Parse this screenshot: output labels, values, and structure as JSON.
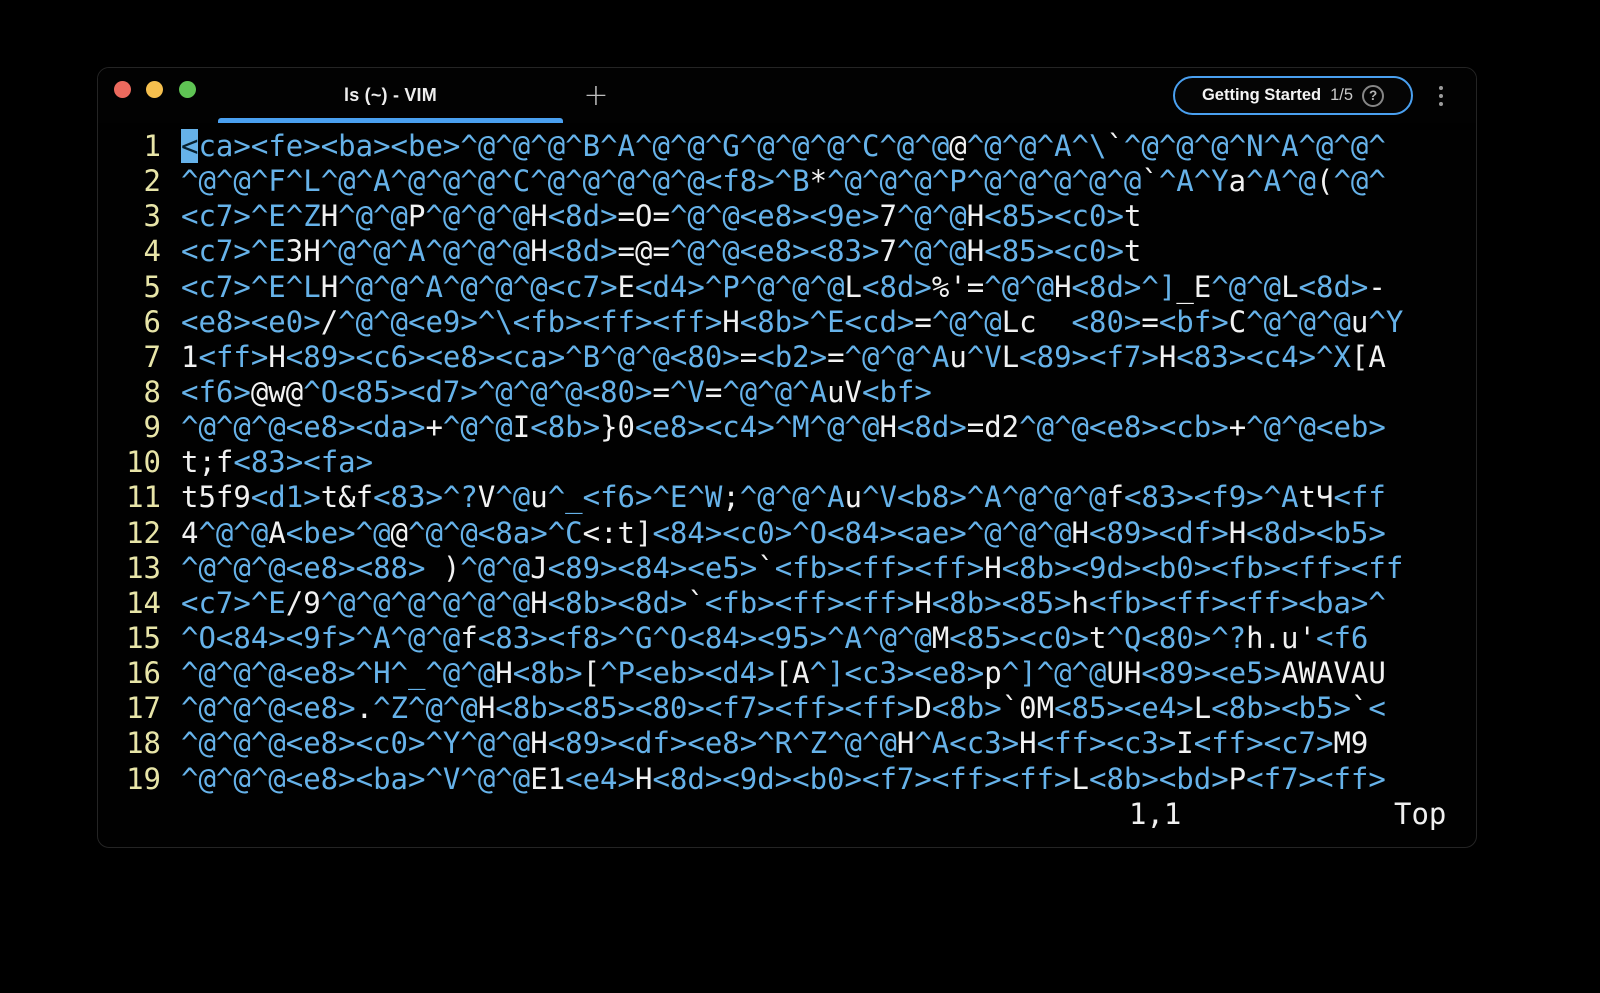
{
  "titlebar": {
    "tab_title": "ls (~) - VIM",
    "new_tab_label": "+",
    "getting_started": {
      "label": "Getting Started",
      "progress": "1/5",
      "help_icon": "?"
    }
  },
  "editor": {
    "cursor": {
      "line": 1,
      "col": 1
    },
    "lines": [
      {
        "num": "1",
        "text": "<ca><fe><ba><be>^@^@^@^B^A^@^@^G^@^@^@^C^@^@@^@^@^A^\\`^@^@^@^N^A^@^@^"
      },
      {
        "num": "2",
        "text": "^@^@^F^L^@^A^@^@^@^C^@^@^@^@^@<f8>^B*^@^@^@^P^@^@^@^@^@`^A^Ya^A^@(^@^"
      },
      {
        "num": "3",
        "text": "<c7>^E^ZH^@^@P^@^@^@H<8d>=O=^@^@<e8><9e>7^@^@H<85><c0>t"
      },
      {
        "num": "4",
        "text": "<c7>^E3H^@^@^A^@^@^@H<8d>=@=^@^@<e8><83>7^@^@H<85><c0>t"
      },
      {
        "num": "5",
        "text": "<c7>^E^LH^@^@^A^@^@^@<c7>E<d4>^P^@^@^@L<8d>%'=^@^@H<8d>^]_E^@^@L<8d>-"
      },
      {
        "num": "6",
        "text": "<e8><e0>/^@^@<e9>^\\<fb><ff><ff>H<8b>^E<cd>=^@^@Lc  <80>=<bf>C^@^@^@u^Y"
      },
      {
        "num": "7",
        "text": "1<ff>H<89><c6><e8><ca>^B^@^@<80>=<b2>=^@^@^Au^VL<89><f7>H<83><c4>^X[A"
      },
      {
        "num": "8",
        "text": "<f6>@w@^O<85><d7>^@^@^@<80>=^V=^@^@^AuV<bf>"
      },
      {
        "num": "9",
        "text": "^@^@^@<e8><da>+^@^@I<8b>}0<e8><c4>^M^@^@H<8d>=d2^@^@<e8><cb>+^@^@<eb>"
      },
      {
        "num": "10",
        "text": "t;f<83><fa>"
      },
      {
        "num": "11",
        "text": "t5f9<d1>t&f<83>^?V^@u^_<f6>^E^W;^@^@^Au^V<b8>^A^@^@^@f<83><f9>^AtЧ<ff"
      },
      {
        "num": "12",
        "text": "4^@^@A<be>^@@^@^@<8a>^C<:t]<84><c0>^O<84><ae>^@^@^@H<89><df>H<8d><b5>"
      },
      {
        "num": "13",
        "text": "^@^@^@<e8><88> )^@^@J<89><84><e5>`<fb><ff><ff>H<8b><9d><b0><fb><ff><ff"
      },
      {
        "num": "14",
        "text": "<c7>^E/9^@^@^@^@^@^@H<8b><8d>`<fb><ff><ff>H<8b><85>h<fb><ff><ff><ba>^"
      },
      {
        "num": "15",
        "text": "^O<84><9f>^A^@^@f<83><f8>^G^O<84><95>^A^@^@M<85><c0>t^Q<80>^?h.u'<f6"
      },
      {
        "num": "16",
        "text": "^@^@^@<e8>^H^_^@^@H<8b>[^P<eb><d4>[A^]<c3><e8>p^]^@^@UH<89><e5>AWAVAU"
      },
      {
        "num": "17",
        "text": "^@^@^@<e8>.^Z^@^@H<8b><85><80><f7><ff><ff>D<8b>`0M<85><e4>L<8b><b5>`<"
      },
      {
        "num": "18",
        "text": "^@^@^@<e8><c0>^Y^@^@H<89><df><e8>^R^Z^@^@H^A<c3>H<ff><c3>I<ff><c7>M9"
      },
      {
        "num": "19",
        "text": "^@^@^@<e8><ba>^V^@^@E1<e4>H<8d><9d><b0><f7><ff><ff>L<8b><bd>P<f7><ff>"
      }
    ],
    "status": {
      "ruler": "1,1",
      "scroll": "Top"
    }
  },
  "colors": {
    "special": "#66b2e9",
    "normal": "#f2f2f2",
    "line_number": "#e8e5a8",
    "accent_blue": "#4aa0f0",
    "light_red": "#ec6a5e",
    "light_yellow": "#f5bf4e",
    "light_green": "#5fc454"
  }
}
